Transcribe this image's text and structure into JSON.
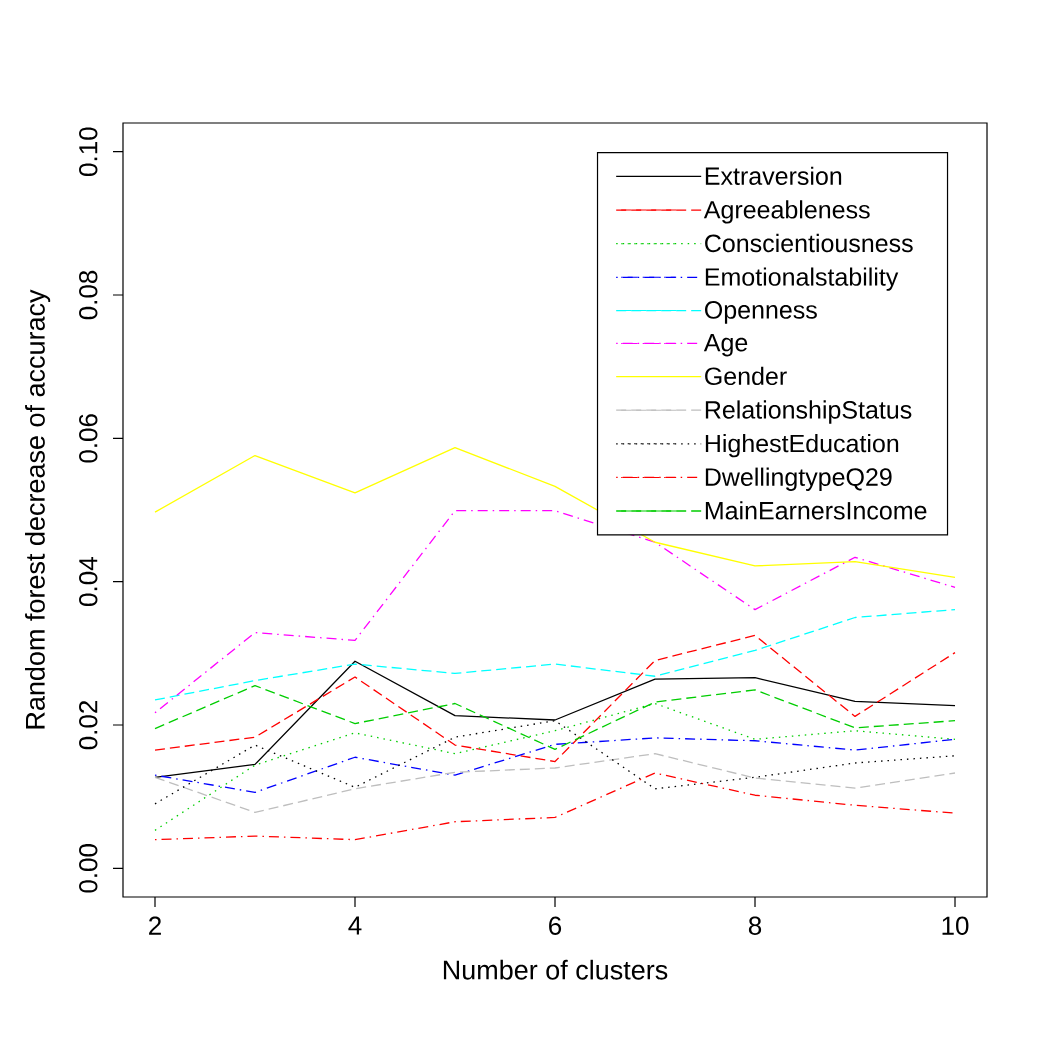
{
  "chart_data": {
    "type": "line",
    "xlabel": "Number of clusters",
    "ylabel": "Random forest decrease of accuracy",
    "x": [
      2,
      3,
      4,
      5,
      6,
      7,
      8,
      9,
      10
    ],
    "xlim": [
      1.68,
      10.32
    ],
    "ylim": [
      -0.004,
      0.104
    ],
    "xticks": [
      2,
      4,
      6,
      8,
      10
    ],
    "yticks": [
      {
        "value": 0,
        "label": "0.00"
      },
      {
        "value": 0.02,
        "label": "0.02"
      },
      {
        "value": 0.04,
        "label": "0.04"
      },
      {
        "value": 0.06,
        "label": "0.06"
      },
      {
        "value": 0.08,
        "label": "0.08"
      },
      {
        "value": 0.1,
        "label": "0.10"
      }
    ],
    "legend": "top right",
    "grid": false,
    "series": [
      {
        "name": "Extraversion",
        "color": "#000000",
        "line_style": "solid",
        "values": [
          0.0127,
          0.0145,
          0.0289,
          0.0213,
          0.0207,
          0.0264,
          0.0266,
          0.0233,
          0.0227
        ]
      },
      {
        "name": "Agreeableness",
        "color": "#ff0000",
        "line_style": "dashed",
        "values": [
          0.0165,
          0.0183,
          0.0267,
          0.0172,
          0.0149,
          0.029,
          0.0325,
          0.0212,
          0.0301
        ]
      },
      {
        "name": "Conscientiousness",
        "color": "#00cd00",
        "line_style": "dotted",
        "values": [
          0.0053,
          0.0144,
          0.0189,
          0.016,
          0.0192,
          0.023,
          0.018,
          0.0192,
          0.018
        ]
      },
      {
        "name": "Emotionalstability",
        "color": "#0000ff",
        "line_style": "dashdot",
        "values": [
          0.013,
          0.0106,
          0.0155,
          0.013,
          0.0173,
          0.0182,
          0.0178,
          0.0165,
          0.018
        ]
      },
      {
        "name": "Openness",
        "color": "#00ffff",
        "line_style": "dashed",
        "values": [
          0.0235,
          0.0262,
          0.0285,
          0.0272,
          0.0285,
          0.0268,
          0.0304,
          0.035,
          0.0361
        ]
      },
      {
        "name": "Age",
        "color": "#ff00ff",
        "line_style": "dashdot",
        "values": [
          0.0217,
          0.0329,
          0.0318,
          0.0499,
          0.0499,
          0.0455,
          0.0361,
          0.0434,
          0.0392
        ]
      },
      {
        "name": "Gender",
        "color": "#ffff00",
        "line_style": "solid",
        "values": [
          0.0497,
          0.0576,
          0.0524,
          0.0587,
          0.0533,
          0.0455,
          0.0422,
          0.0428,
          0.0406
        ]
      },
      {
        "name": "RelationshipStatus",
        "color": "#bebebe",
        "line_style": "dashed",
        "values": [
          0.0127,
          0.0078,
          0.0111,
          0.0134,
          0.014,
          0.016,
          0.0126,
          0.0112,
          0.0133
        ]
      },
      {
        "name": "HighestEducation",
        "color": "#000000",
        "line_style": "dotted",
        "values": [
          0.009,
          0.0172,
          0.0113,
          0.0183,
          0.0206,
          0.0111,
          0.0127,
          0.0147,
          0.0157
        ]
      },
      {
        "name": "DwellingtypeQ29",
        "color": "#ff0000",
        "line_style": "dashdot",
        "values": [
          0.004,
          0.0045,
          0.004,
          0.0065,
          0.0071,
          0.0133,
          0.0102,
          0.0088,
          0.0077
        ]
      },
      {
        "name": "MainEarnersIncome",
        "color": "#00cd00",
        "line_style": "dashed",
        "values": [
          0.0195,
          0.0255,
          0.0202,
          0.023,
          0.0166,
          0.0232,
          0.0249,
          0.0196,
          0.0206
        ]
      }
    ]
  }
}
